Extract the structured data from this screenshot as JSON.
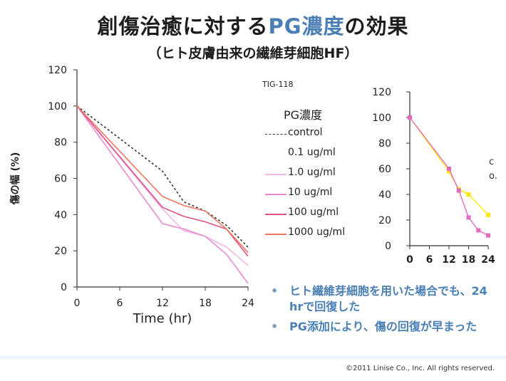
{
  "title": {
    "main_before": "創傷治癒に対する",
    "main_highlight": "PG濃度",
    "main_after": "の効果",
    "subtitle": "（ヒト皮膚由来の繊維芽細胞HF）"
  },
  "legend": {
    "ref": "TIG-118",
    "title": "PG濃度",
    "entries": [
      {
        "label": "control",
        "color": "#333333",
        "style": "dashed"
      },
      {
        "label": "0.1 ug/ml",
        "color": "",
        "style": "none"
      },
      {
        "label": "1.0 ug/ml",
        "color": "#f2b8e6",
        "style": "solid"
      },
      {
        "label": "10 ug/ml",
        "color": "#e88ad0",
        "style": "solid"
      },
      {
        "label": "100 ug/ml",
        "color": "#e0508a",
        "style": "solid"
      },
      {
        "label": "1000 ug/ml",
        "color": "#f07560",
        "style": "solid"
      }
    ]
  },
  "chart_data": [
    {
      "type": "line",
      "title": "",
      "xlabel": "Time (hr)",
      "ylabel": "傷の幅 (%)",
      "xlim": [
        0,
        24
      ],
      "ylim": [
        0,
        120
      ],
      "xticks": [
        "0",
        "6",
        "12",
        "18",
        "24"
      ],
      "yticks": [
        "0",
        "20",
        "40",
        "60",
        "80",
        "100",
        "120"
      ],
      "grid": false,
      "series": [
        {
          "name": "control",
          "color": "#333333",
          "dash": true,
          "x": [
            0,
            12,
            15,
            18,
            21,
            24
          ],
          "y": [
            100,
            64,
            47,
            42,
            34,
            22
          ]
        },
        {
          "name": "1.0 ug/ml",
          "color": "#f2b8e6",
          "dash": false,
          "x": [
            0,
            12,
            15,
            18,
            21,
            24
          ],
          "y": [
            100,
            43,
            31,
            28,
            22,
            12
          ]
        },
        {
          "name": "10 ug/ml",
          "color": "#e88ad0",
          "dash": false,
          "x": [
            0,
            12,
            15,
            18,
            21,
            24
          ],
          "y": [
            100,
            35,
            32,
            28,
            18,
            2
          ]
        },
        {
          "name": "100 ug/ml",
          "color": "#e0508a",
          "dash": false,
          "x": [
            0,
            12,
            15,
            18,
            21,
            24
          ],
          "y": [
            100,
            44,
            39,
            36,
            32,
            17
          ]
        },
        {
          "name": "1000 ug/ml",
          "color": "#f07560",
          "dash": false,
          "x": [
            0,
            12,
            15,
            18,
            21,
            24
          ],
          "y": [
            100,
            50,
            45,
            42,
            32,
            19
          ]
        }
      ]
    },
    {
      "type": "line",
      "title": "",
      "xlabel": "",
      "ylabel": "",
      "xlim": [
        0,
        24
      ],
      "ylim": [
        0,
        120
      ],
      "xticks": [
        "0",
        "6",
        "12",
        "18",
        "24"
      ],
      "yticks": [
        "0",
        "20",
        "40",
        "60",
        "80",
        "100",
        "120"
      ],
      "grid": false,
      "series": [
        {
          "name": "",
          "color": "#ffe800",
          "marker": true,
          "x": [
            0,
            12,
            15,
            18,
            24
          ],
          "y": [
            100,
            58,
            44,
            40,
            24
          ]
        },
        {
          "name": "",
          "color": "#e46ac0",
          "marker": true,
          "x": [
            0,
            12,
            15,
            18,
            21,
            24
          ],
          "y": [
            100,
            60,
            43,
            22,
            12,
            8
          ]
        }
      ]
    }
  ],
  "side_cut_text": [
    "c",
    "o."
  ],
  "bullets": [
    "ヒト繊維芽細胞を用いた場合でも、24 hrで回復した",
    "PG添加により、傷の回復が早まった"
  ],
  "bullet_glyph": "•",
  "copyright": "©2011 Linise Co., Inc. All rights reserved."
}
